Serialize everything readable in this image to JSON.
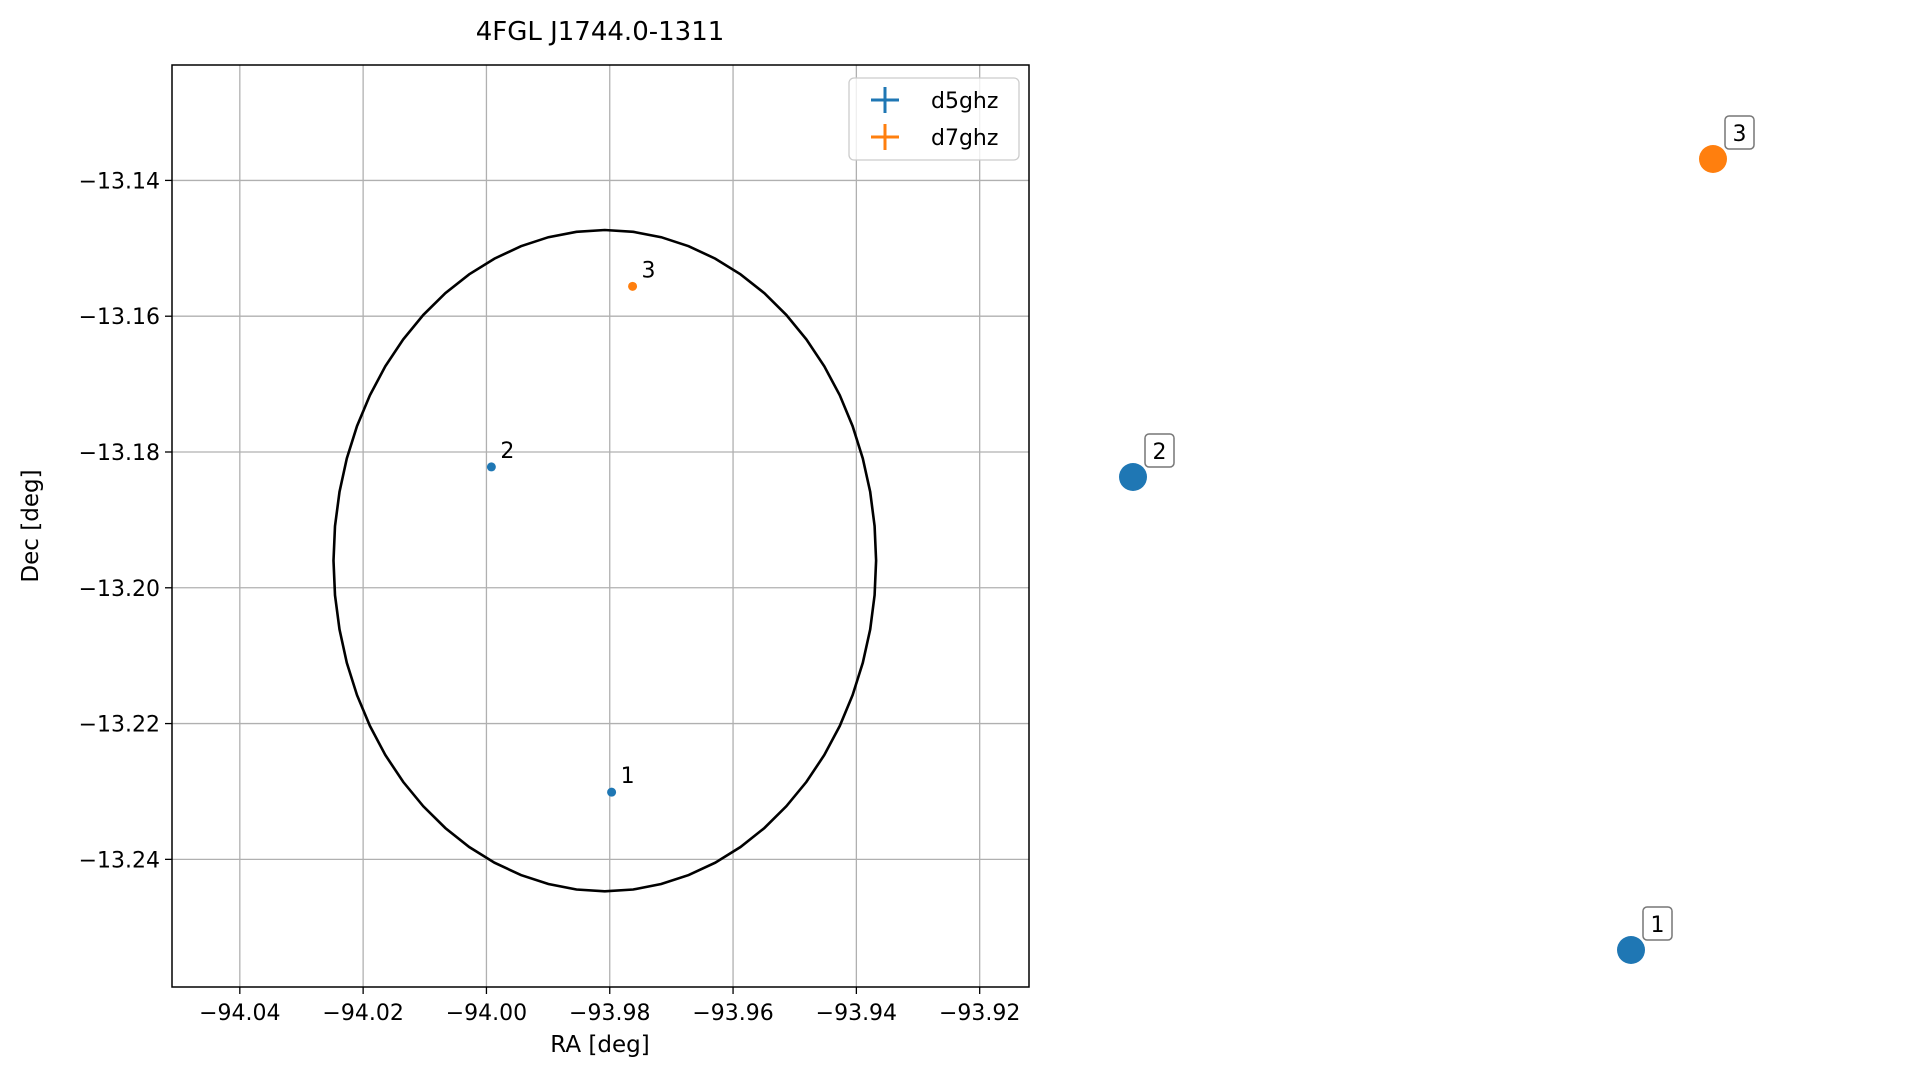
{
  "chart_data": {
    "type": "scatter",
    "title": "4FGL J1744.0-1311",
    "xlabel": "RA [deg]",
    "ylabel": "Dec [deg]",
    "xlim": [
      -94.051,
      -93.912
    ],
    "ylim": [
      -13.2588,
      -13.123
    ],
    "xticks": [
      -94.04,
      -94.02,
      -94.0,
      -93.98,
      -93.96,
      -93.94,
      -93.92
    ],
    "xtick_labels": [
      "−94.04",
      "−94.02",
      "−94.00",
      "−93.98",
      "−93.96",
      "−93.94",
      "−93.92"
    ],
    "yticks": [
      -13.14,
      -13.16,
      -13.18,
      -13.2,
      -13.22,
      -13.24
    ],
    "ytick_labels": [
      "−13.14",
      "−13.16",
      "−13.18",
      "−13.20",
      "−13.22",
      "−13.24"
    ],
    "grid": true,
    "legend_placement": "top-right",
    "series": [
      {
        "name": "d5ghz",
        "color": "#1f77b4"
      },
      {
        "name": "d7ghz",
        "color": "#ff7f0e"
      }
    ],
    "points": [
      {
        "label": "1",
        "series": "d5ghz",
        "x": -93.9797,
        "y": -13.2301
      },
      {
        "label": "2",
        "series": "d5ghz",
        "x": -93.9992,
        "y": -13.1822
      },
      {
        "label": "3",
        "series": "d7ghz",
        "x": -93.9763,
        "y": -13.1556
      }
    ],
    "ellipse": {
      "center_x": -93.9808,
      "center_y": -13.196,
      "semi_axis_ra": 0.044,
      "semi_axis_dec": 0.0487,
      "color": "#000000"
    },
    "outside_markers": [
      {
        "label": "1",
        "series": "d5ghz"
      },
      {
        "label": "2",
        "series": "d5ghz"
      },
      {
        "label": "3",
        "series": "d7ghz"
      }
    ]
  }
}
